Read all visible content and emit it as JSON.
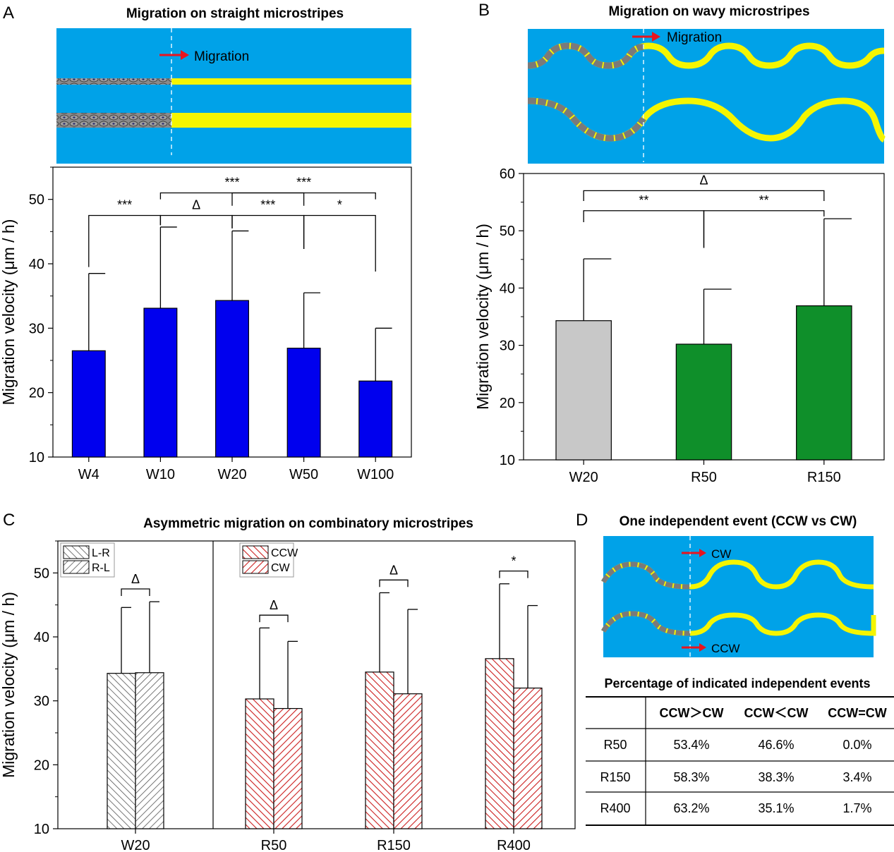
{
  "panels": {
    "A": {
      "letter": "A",
      "title": "Migration on straight microstripes",
      "arrow_label": "Migration"
    },
    "B": {
      "letter": "B",
      "title": "Migration on wavy microstripes",
      "arrow_label": "Migration"
    },
    "C": {
      "letter": "C",
      "title": "Asymmetric migration on combinatory microstripes"
    },
    "D": {
      "letter": "D",
      "title": "One independent event (CCW vs CW)",
      "cw_label": "CW",
      "ccw_label": "CCW"
    }
  },
  "colors": {
    "blue_bar": "#0000ee",
    "green_bar": "#0f8f2a",
    "gray_bar": "#c8c8c8",
    "red_hatch": "#cc1f1f",
    "gray_hatch": "#555555",
    "substrate": "#00a2e8",
    "stripe": "#f5f500"
  },
  "chart_data": [
    {
      "id": "A",
      "type": "bar",
      "categories": [
        "W4",
        "W10",
        "W20",
        "W50",
        "W100"
      ],
      "values": [
        26.5,
        33.1,
        34.3,
        26.9,
        21.8
      ],
      "errors": [
        12.0,
        12.6,
        10.8,
        8.6,
        8.2
      ],
      "ylabel": "Migration velocity (μm / h)",
      "ylim": [
        10,
        55
      ],
      "yticks": [
        10,
        20,
        30,
        40,
        50
      ],
      "significance": [
        {
          "from": 0,
          "to": 1,
          "label": "***",
          "y": 47.5,
          "lower": [
            39.5,
            46.0
          ]
        },
        {
          "from": 1,
          "to": 2,
          "label": "Δ",
          "y": 47.5,
          "lower": [
            46.0,
            45.5
          ]
        },
        {
          "from": 2,
          "to": 3,
          "label": "***",
          "y": 47.5,
          "lower": [
            45.5,
            42.3
          ]
        },
        {
          "from": 3,
          "to": 4,
          "label": "*",
          "y": 47.5,
          "lower": [
            42.3,
            38.8
          ]
        },
        {
          "from": 1,
          "to": 3,
          "label": "***",
          "y": 51.0,
          "lower": [
            50.0,
            49.0
          ]
        },
        {
          "from": 2,
          "to": 4,
          "label": "***",
          "y": 51.0,
          "lower": [
            49.0,
            50.0
          ]
        }
      ]
    },
    {
      "id": "B",
      "type": "bar",
      "categories": [
        "W20",
        "R50",
        "R150"
      ],
      "values": [
        34.3,
        30.2,
        36.9
      ],
      "errors": [
        10.8,
        9.6,
        15.2
      ],
      "ylabel": "Migration velocity (μm / h)",
      "ylim": [
        10,
        60
      ],
      "yticks": [
        10,
        20,
        30,
        40,
        50,
        60
      ],
      "significance": [
        {
          "from": 0,
          "to": 1,
          "label": "**",
          "y": 53.5,
          "lower": [
            51.5,
            47.0
          ]
        },
        {
          "from": 1,
          "to": 2,
          "label": "**",
          "y": 53.5,
          "lower": [
            47.0,
            52.5
          ]
        },
        {
          "from": 0,
          "to": 2,
          "label": "Δ",
          "y": 57.0,
          "lower": [
            55.2,
            55.2
          ]
        }
      ]
    },
    {
      "id": "C",
      "type": "bar",
      "groups": [
        {
          "name": "W20",
          "series": [
            {
              "name": "L-R",
              "value": 34.3,
              "error": 10.3
            },
            {
              "name": "R-L",
              "value": 34.4,
              "error": 11.1
            }
          ],
          "sig": "Δ"
        },
        {
          "name": "R50",
          "series": [
            {
              "name": "CCW",
              "value": 30.3,
              "error": 11.1
            },
            {
              "name": "CW",
              "value": 28.8,
              "error": 10.5
            }
          ],
          "sig": "Δ"
        },
        {
          "name": "R150",
          "series": [
            {
              "name": "CCW",
              "value": 34.5,
              "error": 12.4
            },
            {
              "name": "CW",
              "value": 31.1,
              "error": 13.2
            }
          ],
          "sig": "Δ"
        },
        {
          "name": "R400",
          "series": [
            {
              "name": "CCW",
              "value": 36.6,
              "error": 11.7
            },
            {
              "name": "CW",
              "value": 32.0,
              "error": 12.9
            }
          ],
          "sig": "*"
        }
      ],
      "legend_left": [
        "L-R",
        "R-L"
      ],
      "legend_right": [
        "CCW",
        "CW"
      ],
      "ylabel": "Migration velocity (μm / h)",
      "ylim": [
        10,
        55
      ],
      "yticks": [
        10,
        20,
        30,
        40,
        50
      ]
    },
    {
      "id": "D",
      "type": "table",
      "title": "Percentage of indicated independent events",
      "columns": [
        "",
        "CCW＞CW",
        "CCW＜CW",
        "CCW=CW"
      ],
      "rows": [
        [
          "R50",
          "53.4%",
          "46.6%",
          "0.0%"
        ],
        [
          "R150",
          "58.3%",
          "38.3%",
          "3.4%"
        ],
        [
          "R400",
          "63.2%",
          "35.1%",
          "1.7%"
        ]
      ]
    }
  ]
}
